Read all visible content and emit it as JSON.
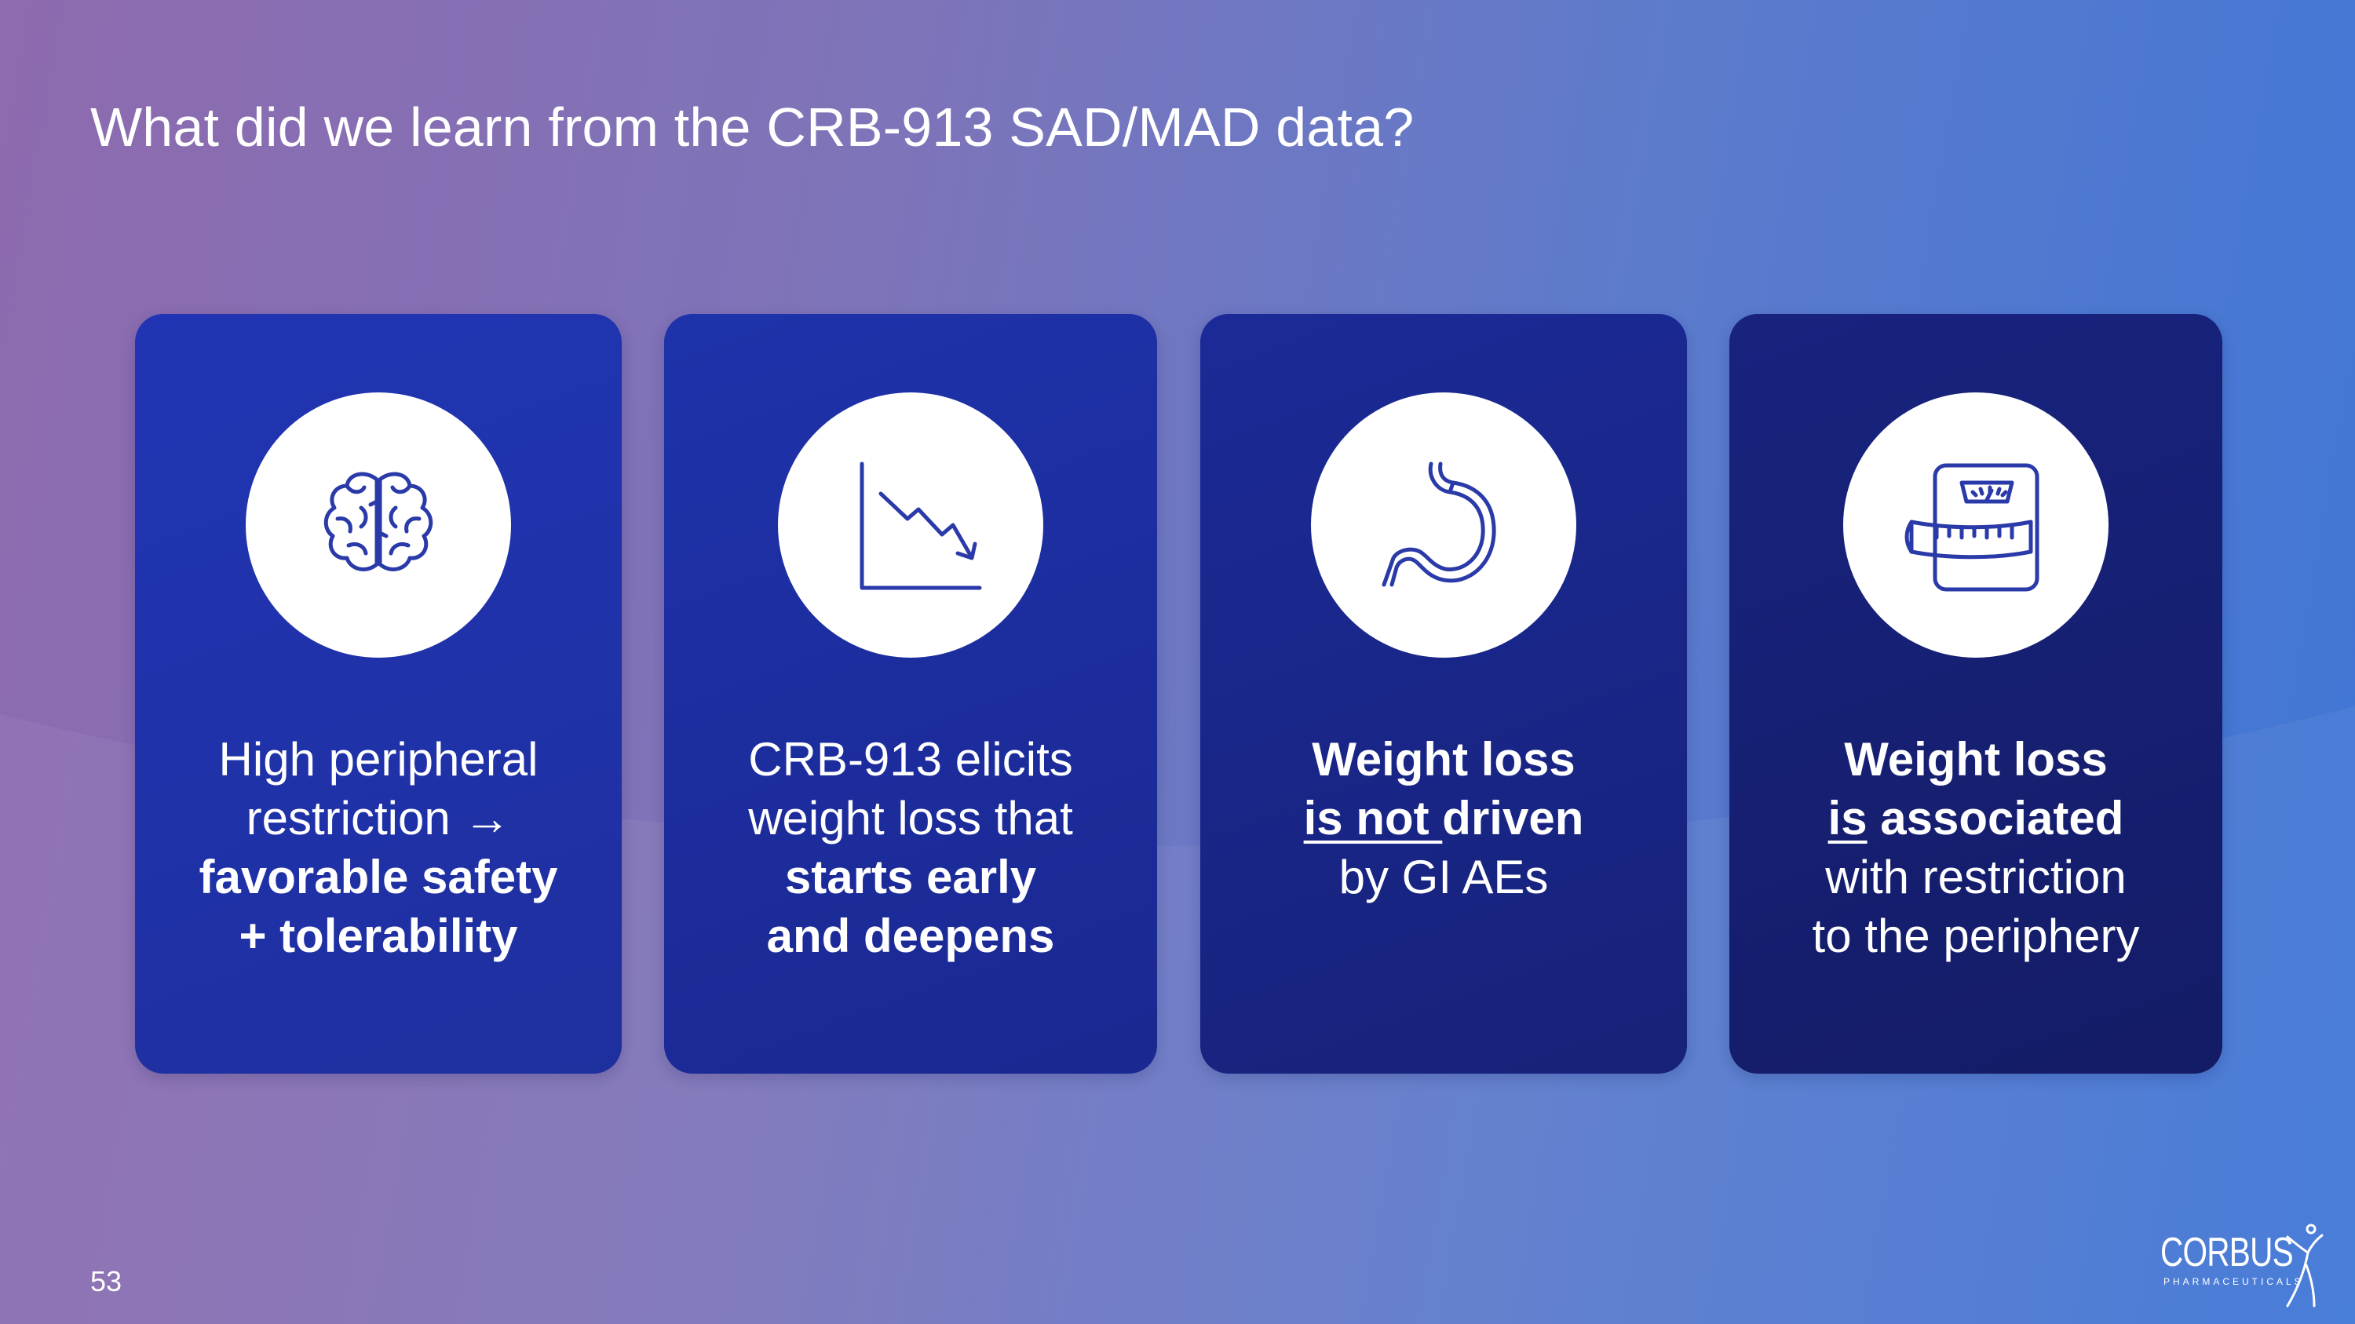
{
  "slide": {
    "title": "What did we learn from the CRB-913 SAD/MAD data?",
    "page_number": "53"
  },
  "logo": {
    "name": "CORBUS",
    "subtitle": "PHARMACEUTICALS"
  },
  "cards": [
    {
      "icon": "brain-icon",
      "lines": {
        "l1": "High peripheral",
        "l2": "restriction →",
        "l3": "favorable safety",
        "l4": "+ tolerability"
      }
    },
    {
      "icon": "declining-chart-icon",
      "lines": {
        "l1": "CRB-913 elicits",
        "l2": "weight loss that",
        "l3": "starts early",
        "l4": "and deepens"
      }
    },
    {
      "icon": "stomach-icon",
      "lines": {
        "l1": "Weight loss",
        "l2a": "is not ",
        "l2b": "driven",
        "l3": "by GI AEs"
      }
    },
    {
      "icon": "scale-tape-measure-icon",
      "lines": {
        "l1": "Weight loss",
        "l2a": "is",
        "l2b": " associated",
        "l3": "with restriction",
        "l4": "to the periphery"
      }
    }
  ],
  "colors": {
    "background_left": "#8e6aae",
    "background_right": "#3f76d6",
    "card_blue": "#2135b4",
    "card_navy": "#141c66",
    "icon_stroke": "#2a3aa8"
  }
}
